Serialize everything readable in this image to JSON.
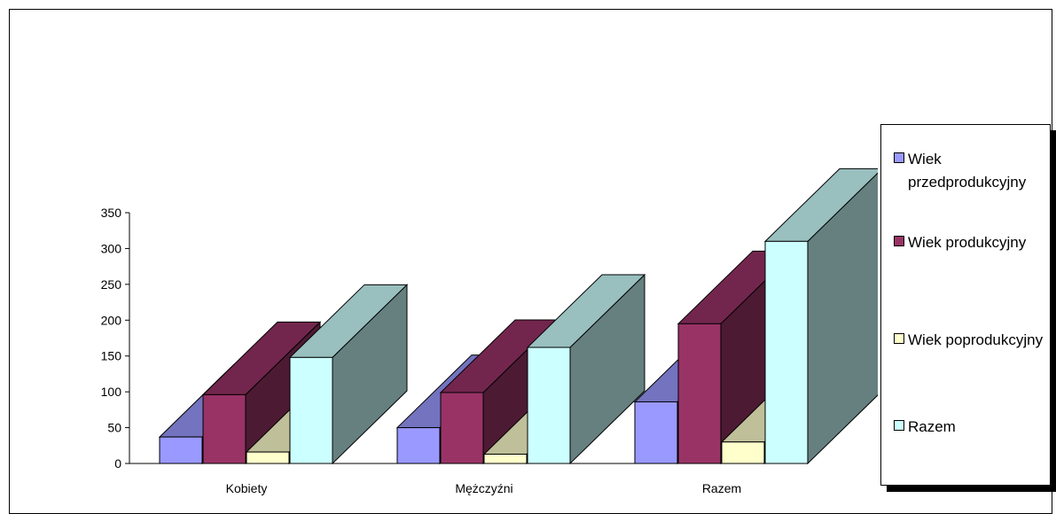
{
  "chart_data": {
    "type": "bar",
    "title": "",
    "xlabel": "",
    "ylabel": "",
    "categories": [
      "Kobiety",
      "Mężczyźni",
      "Razem"
    ],
    "series": [
      {
        "name": "Wiek przedprodukcyjny",
        "values": [
          37,
          50,
          86
        ],
        "color": "#9999ff"
      },
      {
        "name": "Wiek produkcyjny",
        "values": [
          96,
          99,
          195
        ],
        "color": "#993366"
      },
      {
        "name": "Wiek poprodukcyjny",
        "values": [
          16,
          13,
          30
        ],
        "color": "#ffffcc"
      },
      {
        "name": "Razem",
        "values": [
          148,
          162,
          310
        ],
        "color": "#ccffff"
      }
    ],
    "ylim": [
      0,
      350
    ],
    "yticks": [
      0,
      50,
      100,
      150,
      200,
      250,
      300,
      350
    ],
    "grid": false,
    "legend_position": "right",
    "style": "3d-clustered-column"
  }
}
